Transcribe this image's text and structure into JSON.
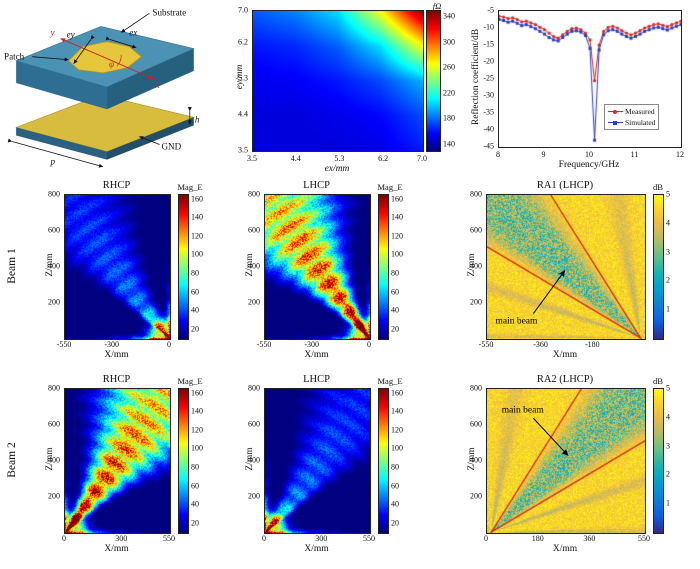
{
  "row_labels": {
    "beam1": "Beam 1",
    "beam2": "Beam 2"
  },
  "schematic": {
    "labels": {
      "substrate": "Substrate",
      "patch": "Patch",
      "gnd": "GND",
      "p": "p",
      "h": "h",
      "ex": "ex",
      "ey": "ey",
      "phi": "φ",
      "x": "x",
      "y": "y"
    },
    "colors": {
      "substrate": "#4c92b4",
      "patch": "#e6c63c",
      "gnd": "#d8bc3e"
    }
  },
  "chart_data": [
    {
      "id": "impedance",
      "type": "heatmap",
      "title": "",
      "xlabel": "ex/mm",
      "ylabel": "ey/mm",
      "xlim": [
        3.5,
        7.0
      ],
      "ylim": [
        3.5,
        7.0
      ],
      "xticks": [
        "3.5",
        "4.4",
        "5.3",
        "6.2",
        "7.0"
      ],
      "yticks": [
        "3.5",
        "4.4",
        "5.3",
        "6.2",
        "7.0"
      ],
      "colorbar": {
        "label": "fΩ",
        "map": "jet",
        "min": 130,
        "max": 350,
        "ticks": [
          140,
          180,
          220,
          260,
          300,
          340
        ]
      },
      "grid": [
        [
          150,
          150,
          150,
          152,
          163
        ],
        [
          150,
          150,
          153,
          158,
          173
        ],
        [
          154,
          156,
          162,
          173,
          196
        ],
        [
          162,
          166,
          178,
          206,
          266
        ],
        [
          177,
          186,
          206,
          266,
          348
        ]
      ]
    },
    {
      "id": "reflection",
      "type": "line",
      "xlabel": "Frequency/GHz",
      "ylabel": "Reflection coefficient/dB",
      "xlim": [
        8,
        12
      ],
      "ylim": [
        -45,
        -5
      ],
      "xticks": [
        8,
        9,
        10,
        11,
        12
      ],
      "yticks": [
        -5,
        -10,
        -15,
        -20,
        -25,
        -30,
        -35,
        -40,
        -45
      ],
      "x0": 8,
      "dx": 0.1,
      "series": [
        {
          "name": "Measured",
          "color": "#d42a2a",
          "marker": "o",
          "y": [
            -6.5,
            -6.8,
            -7.2,
            -7.0,
            -7.5,
            -8.2,
            -8.0,
            -8.5,
            -9.0,
            -9.8,
            -10.5,
            -11.5,
            -12.5,
            -13.0,
            -12.0,
            -11.0,
            -10.2,
            -10.0,
            -10.5,
            -11.5,
            -13.5,
            -25.5,
            -15.0,
            -11.0,
            -9.8,
            -9.5,
            -10.0,
            -10.8,
            -11.5,
            -12.0,
            -11.5,
            -10.8,
            -10.0,
            -9.5,
            -9.0,
            -8.8,
            -9.2,
            -9.6,
            -9.0,
            -8.5,
            -8.0
          ]
        },
        {
          "name": "Simulated",
          "color": "#2b3fbf",
          "marker": "s",
          "y": [
            -7.5,
            -7.8,
            -8.3,
            -8.0,
            -8.6,
            -9.3,
            -9.0,
            -9.6,
            -10.2,
            -11.0,
            -11.8,
            -12.8,
            -13.5,
            -13.8,
            -12.8,
            -11.8,
            -11.0,
            -10.8,
            -11.2,
            -12.2,
            -16.0,
            -43.0,
            -16.5,
            -12.0,
            -10.8,
            -10.5,
            -11.0,
            -11.8,
            -12.5,
            -13.0,
            -12.5,
            -11.8,
            -11.0,
            -10.5,
            -10.0,
            -9.8,
            -10.2,
            -10.6,
            -10.0,
            -9.5,
            -9.0
          ]
        }
      ]
    },
    {
      "id": "beam1_rhcp",
      "type": "field",
      "title": "RHCP",
      "xlabel": "X/mm",
      "ylabel": "Z/mm",
      "xlim": [
        -550,
        0
      ],
      "ylim": [
        0,
        800
      ],
      "xticks": [
        -550,
        -300,
        0
      ],
      "yticks": [
        200,
        400,
        600,
        800
      ],
      "colorbar": {
        "label": "Mag_E",
        "map": "jet",
        "min": 10,
        "max": 165,
        "ticks": [
          20,
          40,
          60,
          80,
          100,
          120,
          140,
          160
        ]
      },
      "field": {
        "origin": [
          0,
          0
        ],
        "angle": 124,
        "width": 7,
        "main": 0.33,
        "side": 0.55,
        "spot": 1.1
      }
    },
    {
      "id": "beam1_lhcp",
      "type": "field",
      "title": "LHCP",
      "xlabel": "X/mm",
      "ylabel": "Z/mm",
      "xlim": [
        -550,
        0
      ],
      "ylim": [
        0,
        800
      ],
      "xticks": [
        -550,
        -300,
        0
      ],
      "yticks": [
        200,
        400,
        600,
        800
      ],
      "colorbar": {
        "label": "Mag_E",
        "map": "jet",
        "min": 10,
        "max": 165,
        "ticks": [
          20,
          40,
          60,
          80,
          100,
          120,
          140,
          160
        ]
      },
      "field": {
        "origin": [
          0,
          0
        ],
        "angle": 124,
        "width": 7,
        "main": 1.06,
        "side": 0.5,
        "spot": 1.1
      }
    },
    {
      "id": "ra1",
      "type": "ra",
      "title": "RA1 (LHCP)",
      "xlabel": "X/mm",
      "ylabel": "Z/mm",
      "xlim": [
        -550,
        0
      ],
      "ylim": [
        0,
        800
      ],
      "xticks": [
        -550,
        -360,
        -180
      ],
      "yticks": [
        200,
        400,
        600,
        800
      ],
      "colorbar": {
        "label": "dB",
        "map": "parula",
        "min": 0,
        "max": 5,
        "ticks": [
          1,
          2,
          3,
          4,
          5
        ]
      },
      "field": {
        "origin": [
          -15,
          5
        ],
        "angle": 124,
        "width": 10
      },
      "annotation": {
        "text": "main beam",
        "tx": 0.06,
        "ty": 0.9,
        "x1": 0.3,
        "y1": 0.83,
        "x2": 0.5,
        "y2": 0.53
      }
    },
    {
      "id": "beam2_rhcp",
      "type": "field",
      "title": "RHCP",
      "xlabel": "X/mm",
      "ylabel": "Z/mm",
      "xlim": [
        0,
        550
      ],
      "ylim": [
        0,
        800
      ],
      "xticks": [
        0,
        300,
        550
      ],
      "yticks": [
        200,
        400,
        600,
        800
      ],
      "colorbar": {
        "label": "Mag_E",
        "map": "jet",
        "min": 10,
        "max": 165,
        "ticks": [
          20,
          40,
          60,
          80,
          100,
          120,
          140,
          160
        ]
      },
      "field": {
        "origin": [
          0,
          0
        ],
        "angle": 56,
        "width": 7,
        "main": 1.06,
        "side": 0.5,
        "spot": 1.1
      }
    },
    {
      "id": "beam2_lhcp",
      "type": "field",
      "title": "LHCP",
      "xlabel": "X/mm",
      "ylabel": "Z/mm",
      "xlim": [
        0,
        550
      ],
      "ylim": [
        0,
        800
      ],
      "xticks": [
        0,
        300,
        550
      ],
      "yticks": [
        200,
        400,
        600,
        800
      ],
      "colorbar": {
        "label": "Mag_E",
        "map": "jet",
        "min": 10,
        "max": 165,
        "ticks": [
          20,
          40,
          60,
          80,
          100,
          120,
          140,
          160
        ]
      },
      "field": {
        "origin": [
          0,
          0
        ],
        "angle": 56,
        "width": 7,
        "main": 0.33,
        "side": 0.55,
        "spot": 1.1
      }
    },
    {
      "id": "ra2",
      "type": "ra",
      "title": "RA2 (LHCP)",
      "xlabel": "X/mm",
      "ylabel": "Z/mm",
      "xlim": [
        0,
        550
      ],
      "ylim": [
        0,
        800
      ],
      "xticks": [
        0,
        180,
        360,
        550
      ],
      "yticks": [
        200,
        400,
        600,
        800
      ],
      "colorbar": {
        "label": "dB",
        "map": "parula",
        "min": 0,
        "max": 5,
        "ticks": [
          1,
          2,
          3,
          4,
          5
        ]
      },
      "field": {
        "origin": [
          15,
          5
        ],
        "angle": 56,
        "width": 10
      },
      "annotation": {
        "text": "main beam",
        "tx": 0.1,
        "ty": 0.17,
        "x1": 0.3,
        "y1": 0.21,
        "x2": 0.52,
        "y2": 0.47
      }
    }
  ]
}
